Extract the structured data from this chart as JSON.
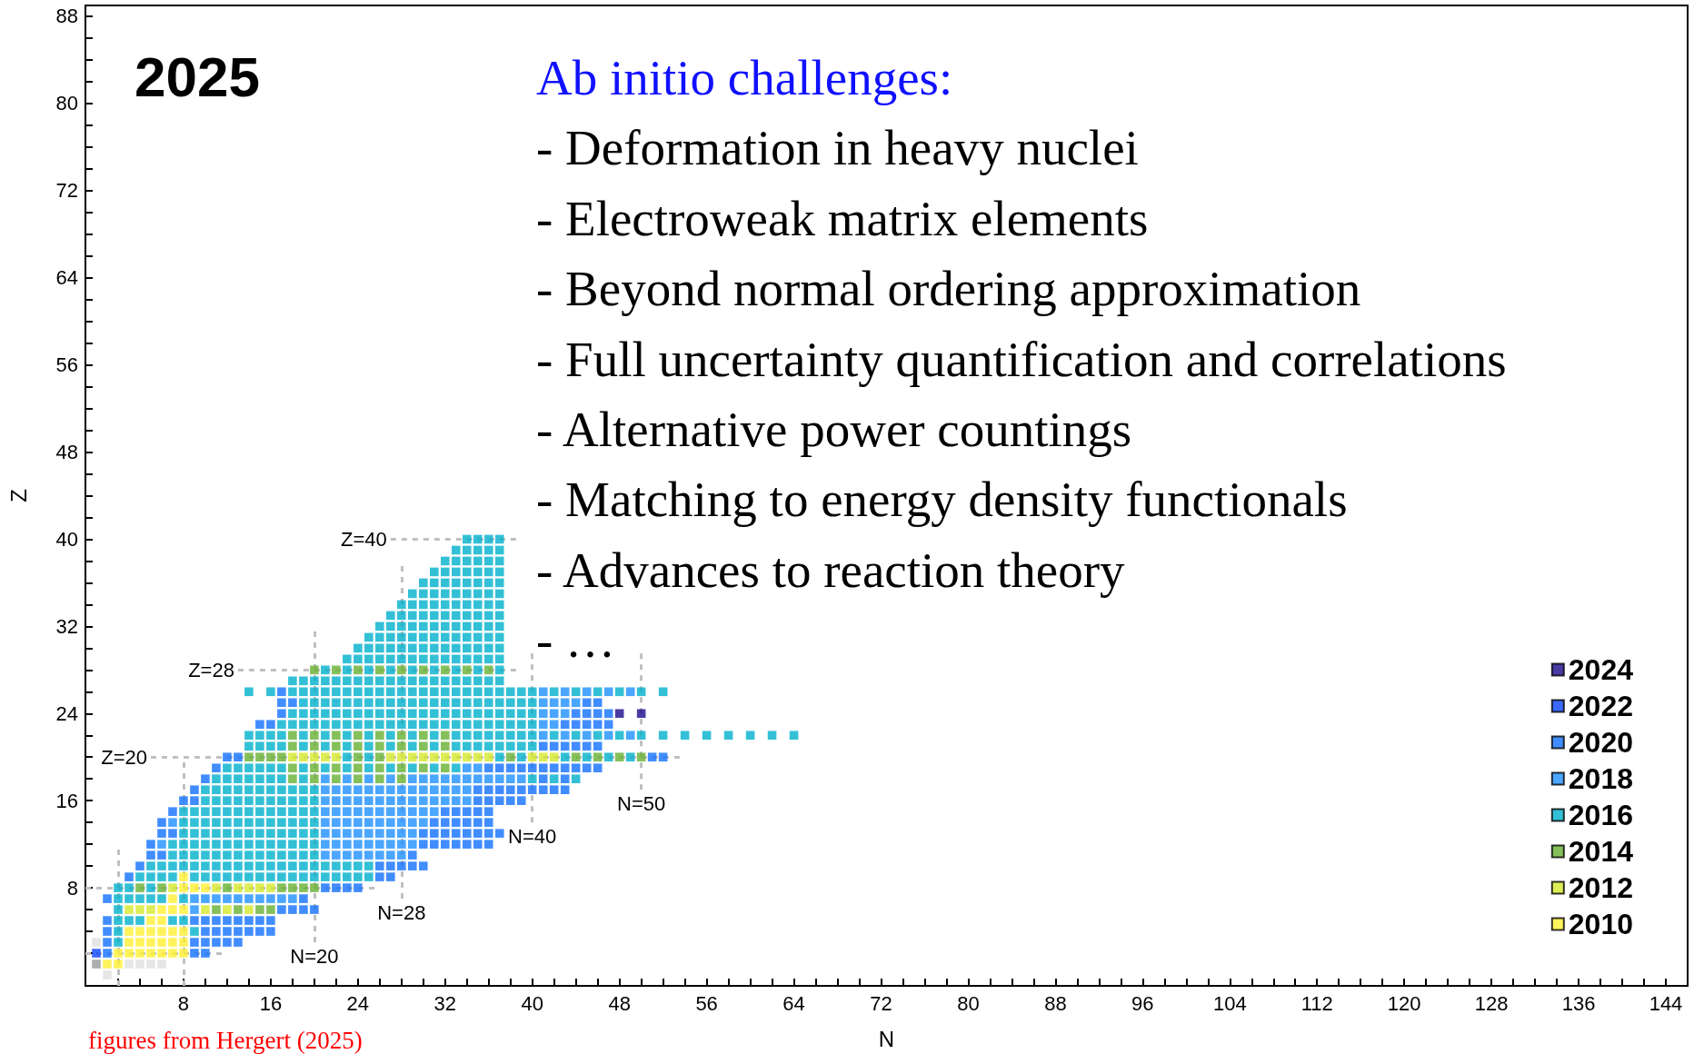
{
  "chart_data": {
    "type": "scatter",
    "title": "2025",
    "xlabel": "N",
    "ylabel": "Z",
    "xlim": [
      -1,
      146
    ],
    "ylim": [
      -1,
      89
    ],
    "xticks": [
      {
        "value": 2,
        "label": null
      },
      {
        "value": 4,
        "label": null
      },
      {
        "value": 6,
        "label": null
      },
      8,
      {
        "value": 10,
        "label": null
      },
      {
        "value": 12,
        "label": null
      },
      {
        "value": 14,
        "label": null
      },
      16,
      {
        "value": 18,
        "label": null
      },
      {
        "value": 20,
        "label": null
      },
      {
        "value": 22,
        "label": null
      },
      24,
      {
        "value": 26,
        "label": null
      },
      {
        "value": 28,
        "label": null
      },
      {
        "value": 30,
        "label": null
      },
      32,
      {
        "value": 34,
        "label": null
      },
      {
        "value": 36,
        "label": null
      },
      {
        "value": 38,
        "label": null
      },
      40,
      {
        "value": 42,
        "label": null
      },
      {
        "value": 44,
        "label": null
      },
      {
        "value": 46,
        "label": null
      },
      48,
      {
        "value": 50,
        "label": null
      },
      {
        "value": 52,
        "label": null
      },
      {
        "value": 54,
        "label": null
      },
      56,
      {
        "value": 58,
        "label": null
      },
      {
        "value": 60,
        "label": null
      },
      {
        "value": 62,
        "label": null
      },
      64,
      {
        "value": 66,
        "label": null
      },
      {
        "value": 68,
        "label": null
      },
      {
        "value": 70,
        "label": null
      },
      72,
      {
        "value": 74,
        "label": null
      },
      {
        "value": 76,
        "label": null
      },
      {
        "value": 78,
        "label": null
      },
      80,
      {
        "value": 82,
        "label": null
      },
      {
        "value": 84,
        "label": null
      },
      {
        "value": 86,
        "label": null
      },
      88,
      {
        "value": 90,
        "label": null
      },
      {
        "value": 92,
        "label": null
      },
      {
        "value": 94,
        "label": null
      },
      96,
      {
        "value": 98,
        "label": null
      },
      {
        "value": 100,
        "label": null
      },
      {
        "value": 102,
        "label": null
      },
      104,
      {
        "value": 106,
        "label": null
      },
      {
        "value": 108,
        "label": null
      },
      {
        "value": 110,
        "label": null
      },
      112,
      {
        "value": 114,
        "label": null
      },
      {
        "value": 116,
        "label": null
      },
      {
        "value": 118,
        "label": null
      },
      120,
      {
        "value": 122,
        "label": null
      },
      {
        "value": 124,
        "label": null
      },
      {
        "value": 126,
        "label": null
      },
      128,
      {
        "value": 130,
        "label": null
      },
      {
        "value": 132,
        "label": null
      },
      {
        "value": 134,
        "label": null
      },
      136,
      {
        "value": 138,
        "label": null
      },
      {
        "value": 140,
        "label": null
      },
      {
        "value": 142,
        "label": null
      },
      144,
      {
        "value": 146,
        "label": null
      }
    ],
    "yticks": [
      {
        "value": 2,
        "label": null
      },
      {
        "value": 4,
        "label": null
      },
      {
        "value": 6,
        "label": null
      },
      8,
      {
        "value": 10,
        "label": null
      },
      {
        "value": 12,
        "label": null
      },
      {
        "value": 14,
        "label": null
      },
      16,
      {
        "value": 18,
        "label": null
      },
      {
        "value": 20,
        "label": null
      },
      {
        "value": 22,
        "label": null
      },
      24,
      {
        "value": 26,
        "label": null
      },
      {
        "value": 28,
        "label": null
      },
      {
        "value": 30,
        "label": null
      },
      32,
      {
        "value": 34,
        "label": null
      },
      {
        "value": 36,
        "label": null
      },
      {
        "value": 38,
        "label": null
      },
      40,
      {
        "value": 42,
        "label": null
      },
      {
        "value": 44,
        "label": null
      },
      {
        "value": 46,
        "label": null
      },
      48,
      {
        "value": 50,
        "label": null
      },
      {
        "value": 52,
        "label": null
      },
      {
        "value": 54,
        "label": null
      },
      56,
      {
        "value": 58,
        "label": null
      },
      {
        "value": 60,
        "label": null
      },
      {
        "value": 62,
        "label": null
      },
      64,
      {
        "value": 66,
        "label": null
      },
      {
        "value": 68,
        "label": null
      },
      {
        "value": 70,
        "label": null
      },
      72,
      {
        "value": 74,
        "label": null
      },
      {
        "value": 76,
        "label": null
      },
      {
        "value": 78,
        "label": null
      },
      80,
      {
        "value": 82,
        "label": null
      },
      {
        "value": 84,
        "label": null
      },
      {
        "value": 86,
        "label": null
      },
      88
    ],
    "grid": false,
    "legend": "bottom right",
    "marker": "square",
    "series": [
      {
        "name": "2024",
        "color": "#1a0a8c",
        "x": [
          48,
          50
        ],
        "values": [
          24,
          24
        ]
      },
      {
        "name": "2022",
        "color": "#0a44ff",
        "x": [
          0
        ],
        "values": [
          2
        ]
      },
      {
        "name": "2020",
        "color": "#1170ff",
        "x": [
          1,
          9,
          10,
          1,
          9,
          10,
          11,
          12,
          13,
          1,
          10,
          11,
          12,
          13,
          14,
          15,
          16,
          1,
          9,
          10,
          11,
          12,
          13,
          14,
          15,
          16,
          17,
          18,
          19,
          20,
          1,
          19,
          21,
          22,
          23,
          24,
          3,
          26,
          27,
          4,
          26,
          27,
          28,
          29,
          30,
          5,
          6,
          29,
          5,
          30,
          31,
          32,
          33,
          34,
          35,
          36,
          6,
          7,
          30,
          31,
          32,
          33,
          34,
          35,
          36,
          37,
          6,
          31,
          32,
          33,
          34,
          35,
          36,
          7,
          32,
          33,
          34,
          35,
          36,
          8,
          9,
          35,
          36,
          37,
          38,
          39,
          9,
          35,
          36,
          37,
          38,
          39,
          40,
          41,
          42,
          43,
          10,
          41,
          43,
          11,
          36,
          37,
          38,
          39,
          40,
          41,
          42,
          43,
          44,
          45,
          46,
          12,
          13,
          51,
          52,
          41,
          42,
          43,
          44,
          45,
          46,
          15,
          16,
          43,
          44,
          45,
          46,
          47,
          17,
          44,
          45,
          46,
          47,
          17,
          18,
          45,
          46,
          17
        ],
        "values": [
          2,
          2,
          2,
          3,
          3,
          3,
          3,
          3,
          3,
          4,
          4,
          4,
          4,
          4,
          4,
          4,
          4,
          5,
          5,
          5,
          5,
          5,
          5,
          5,
          5,
          5,
          6,
          6,
          6,
          6,
          7,
          7,
          8,
          8,
          8,
          8,
          9,
          9,
          9,
          10,
          10,
          10,
          10,
          10,
          10,
          11,
          11,
          11,
          12,
          12,
          12,
          12,
          12,
          12,
          12,
          12,
          13,
          13,
          13,
          13,
          13,
          13,
          13,
          13,
          13,
          13,
          14,
          14,
          14,
          14,
          14,
          14,
          14,
          15,
          15,
          15,
          15,
          15,
          15,
          16,
          16,
          16,
          16,
          16,
          16,
          16,
          17,
          17,
          17,
          17,
          17,
          17,
          17,
          17,
          17,
          17,
          18,
          18,
          18,
          19,
          19,
          19,
          19,
          19,
          19,
          19,
          19,
          19,
          19,
          19,
          19,
          20,
          20,
          20,
          20,
          21,
          21,
          21,
          21,
          21,
          21,
          23,
          23,
          23,
          23,
          23,
          23,
          23,
          24,
          24,
          24,
          24,
          24,
          25,
          25,
          25,
          25,
          26
        ]
      },
      {
        "name": "2018",
        "color": "#1e90ff",
        "x": [
          9,
          9,
          10,
          11,
          12,
          13,
          14,
          15,
          16,
          17,
          18,
          21,
          22,
          23,
          24,
          25,
          26,
          27,
          28,
          6,
          21,
          22,
          23,
          24,
          25,
          26,
          27,
          28,
          29,
          21,
          22,
          23,
          24,
          25,
          26,
          27,
          28,
          29,
          7,
          21,
          22,
          23,
          24,
          25,
          26,
          27,
          28,
          29,
          30,
          21,
          22,
          23,
          24,
          25,
          26,
          27,
          28,
          29,
          30,
          31,
          21,
          22,
          23,
          24,
          25,
          26,
          27,
          28,
          29,
          30,
          31,
          32,
          33,
          34,
          21,
          22,
          23,
          24,
          25,
          26,
          27,
          28,
          29,
          30,
          31,
          32,
          33,
          34,
          21,
          23,
          25,
          27,
          29,
          30,
          31,
          32,
          33,
          34,
          35,
          36,
          37,
          38,
          39,
          34,
          35,
          41,
          43,
          45,
          47,
          49,
          41,
          42,
          41,
          42,
          43,
          41,
          42,
          43,
          44,
          41,
          43,
          45,
          47,
          49
        ],
        "values": [
          6,
          7,
          7,
          7,
          7,
          7,
          7,
          7,
          7,
          7,
          7,
          11,
          11,
          11,
          11,
          11,
          11,
          11,
          11,
          12,
          12,
          12,
          12,
          12,
          12,
          12,
          12,
          12,
          12,
          13,
          13,
          13,
          13,
          13,
          13,
          13,
          13,
          13,
          14,
          14,
          14,
          14,
          14,
          14,
          14,
          14,
          14,
          14,
          14,
          15,
          15,
          15,
          15,
          15,
          15,
          15,
          15,
          15,
          15,
          15,
          16,
          16,
          16,
          16,
          16,
          16,
          16,
          16,
          16,
          16,
          16,
          16,
          16,
          16,
          17,
          17,
          17,
          17,
          17,
          17,
          17,
          17,
          17,
          17,
          17,
          17,
          17,
          17,
          18,
          18,
          18,
          18,
          18,
          18,
          18,
          18,
          18,
          18,
          18,
          18,
          18,
          18,
          18,
          19,
          19,
          22,
          22,
          22,
          22,
          22,
          23,
          23,
          24,
          24,
          24,
          25,
          25,
          25,
          25,
          26,
          26,
          26,
          26,
          26
        ]
      },
      {
        "name": "2016",
        "color": "#00b0cc",
        "x": [
          2,
          2,
          9,
          2,
          3,
          4,
          7,
          8,
          2,
          2,
          3,
          4,
          5,
          6,
          8,
          2,
          3,
          5,
          4,
          5,
          6,
          7,
          9,
          10,
          11,
          12,
          13,
          14,
          15,
          16,
          17,
          18,
          19,
          20,
          21,
          22,
          23,
          24,
          25,
          5,
          6,
          7,
          8,
          9,
          10,
          11,
          12,
          13,
          14,
          15,
          16,
          17,
          18,
          19,
          20,
          21,
          22,
          23,
          24,
          25,
          7,
          8,
          9,
          10,
          11,
          12,
          13,
          14,
          15,
          16,
          17,
          18,
          19,
          20,
          7,
          8,
          9,
          10,
          11,
          12,
          13,
          14,
          15,
          16,
          17,
          18,
          19,
          20,
          8,
          9,
          10,
          11,
          12,
          13,
          14,
          15,
          16,
          17,
          18,
          19,
          20,
          8,
          9,
          10,
          11,
          12,
          13,
          14,
          15,
          16,
          17,
          18,
          19,
          20,
          8,
          9,
          10,
          11,
          12,
          13,
          14,
          15,
          16,
          17,
          18,
          19,
          20,
          10,
          11,
          12,
          13,
          14,
          15,
          16,
          17,
          18,
          19,
          20,
          10,
          11,
          12,
          13,
          14,
          15,
          16,
          17,
          18,
          19,
          20,
          11,
          12,
          13,
          14,
          15,
          16,
          17,
          19,
          40,
          42,
          44,
          12,
          13,
          14,
          15,
          16,
          17,
          19,
          21,
          23,
          25,
          27,
          29,
          31,
          33,
          23,
          25,
          37,
          39,
          43,
          45,
          47,
          49,
          14,
          15,
          16,
          17,
          19,
          21,
          23,
          25,
          27,
          29,
          31,
          33,
          34,
          35,
          36,
          37,
          38,
          39,
          40,
          14,
          15,
          16,
          17,
          19,
          21,
          23,
          25,
          27,
          29,
          31,
          33,
          34,
          35,
          36,
          37,
          38,
          39,
          40,
          42,
          44,
          46,
          48,
          50,
          52,
          54,
          56,
          58,
          60,
          62,
          64,
          17,
          18,
          19,
          20,
          21,
          22,
          23,
          24,
          25,
          26,
          27,
          28,
          29,
          30,
          31,
          32,
          33,
          34,
          35,
          36,
          37,
          38,
          39,
          40,
          18,
          19,
          20,
          21,
          22,
          23,
          24,
          25,
          26,
          27,
          28,
          29,
          30,
          31,
          32,
          33,
          34,
          35,
          36,
          37,
          38,
          39,
          40,
          19,
          20,
          21,
          22,
          23,
          24,
          25,
          26,
          27,
          28,
          29,
          30,
          31,
          32,
          33,
          34,
          35,
          36,
          37,
          38,
          39,
          40,
          14,
          16,
          18,
          19,
          20,
          21,
          22,
          23,
          24,
          25,
          26,
          27,
          28,
          29,
          30,
          31,
          32,
          33,
          34,
          35,
          36,
          37,
          38,
          39,
          40,
          42,
          44,
          46,
          48,
          50,
          52,
          18,
          19,
          20,
          21,
          22,
          23,
          24,
          25,
          26,
          27,
          28,
          29,
          30,
          31,
          32,
          33,
          34,
          35,
          36,
          37,
          21,
          23,
          25,
          27,
          29,
          31,
          33,
          35,
          37,
          23,
          24,
          25,
          26,
          27,
          28,
          29,
          30,
          31,
          32,
          33,
          34,
          35,
          36,
          37,
          24,
          25,
          26,
          27,
          28,
          29,
          30,
          31,
          32,
          33,
          34,
          35,
          36,
          37,
          25,
          26,
          27,
          28,
          29,
          30,
          31,
          32,
          33,
          34,
          35,
          36,
          37,
          26,
          27,
          28,
          29,
          30,
          31,
          32,
          33,
          34,
          35,
          36,
          37,
          27,
          28,
          29,
          30,
          31,
          32,
          33,
          34,
          35,
          36,
          37,
          28,
          29,
          30,
          31,
          32,
          33,
          34,
          35,
          36,
          37,
          29,
          30,
          31,
          32,
          33,
          34,
          35,
          36,
          37,
          30,
          31,
          32,
          33,
          34,
          35,
          36,
          37,
          31,
          32,
          33,
          34,
          35,
          36,
          37,
          32,
          33,
          34,
          35,
          36,
          37,
          33,
          34,
          35,
          36,
          37,
          34,
          35,
          36,
          37
        ],
        "values": [
          3,
          4,
          4,
          5,
          5,
          5,
          5,
          5,
          6,
          7,
          7,
          7,
          7,
          7,
          7,
          8,
          8,
          8,
          9,
          9,
          9,
          9,
          9,
          9,
          9,
          9,
          9,
          9,
          9,
          9,
          9,
          9,
          9,
          9,
          9,
          9,
          9,
          9,
          9,
          10,
          10,
          10,
          10,
          10,
          10,
          10,
          10,
          10,
          10,
          10,
          10,
          10,
          10,
          10,
          10,
          10,
          10,
          10,
          10,
          10,
          11,
          11,
          11,
          11,
          11,
          11,
          11,
          11,
          11,
          11,
          11,
          11,
          11,
          11,
          12,
          12,
          12,
          12,
          12,
          12,
          12,
          12,
          12,
          12,
          12,
          12,
          12,
          12,
          13,
          13,
          13,
          13,
          13,
          13,
          13,
          13,
          13,
          13,
          13,
          13,
          13,
          14,
          14,
          14,
          14,
          14,
          14,
          14,
          14,
          14,
          14,
          14,
          14,
          14,
          15,
          15,
          15,
          15,
          15,
          15,
          15,
          15,
          15,
          15,
          15,
          15,
          15,
          16,
          16,
          16,
          16,
          16,
          16,
          16,
          16,
          16,
          16,
          16,
          17,
          17,
          17,
          17,
          17,
          17,
          17,
          17,
          17,
          17,
          17,
          18,
          18,
          18,
          18,
          18,
          18,
          18,
          18,
          18,
          18,
          18,
          19,
          19,
          19,
          19,
          19,
          19,
          19,
          19,
          19,
          19,
          19,
          19,
          19,
          19,
          20,
          20,
          20,
          20,
          20,
          20,
          20,
          20,
          21,
          21,
          21,
          21,
          21,
          21,
          21,
          21,
          21,
          21,
          21,
          21,
          21,
          21,
          21,
          21,
          21,
          21,
          21,
          22,
          22,
          22,
          22,
          22,
          22,
          22,
          22,
          22,
          22,
          22,
          22,
          22,
          22,
          22,
          22,
          22,
          22,
          22,
          22,
          22,
          22,
          22,
          22,
          22,
          22,
          22,
          22,
          22,
          22,
          22,
          23,
          23,
          23,
          23,
          23,
          23,
          23,
          23,
          23,
          23,
          23,
          23,
          23,
          23,
          23,
          23,
          23,
          23,
          23,
          23,
          23,
          23,
          23,
          23,
          24,
          24,
          24,
          24,
          24,
          24,
          24,
          24,
          24,
          24,
          24,
          24,
          24,
          24,
          24,
          24,
          24,
          24,
          24,
          24,
          24,
          24,
          24,
          25,
          25,
          25,
          25,
          25,
          25,
          25,
          25,
          25,
          25,
          25,
          25,
          25,
          25,
          25,
          25,
          25,
          25,
          25,
          25,
          25,
          25,
          26,
          26,
          26,
          26,
          26,
          26,
          26,
          26,
          26,
          26,
          26,
          26,
          26,
          26,
          26,
          26,
          26,
          26,
          26,
          26,
          26,
          26,
          26,
          26,
          26,
          26,
          26,
          26,
          26,
          26,
          26,
          27,
          27,
          27,
          27,
          27,
          27,
          27,
          27,
          27,
          27,
          27,
          27,
          27,
          27,
          27,
          27,
          27,
          27,
          27,
          27,
          28,
          28,
          28,
          28,
          28,
          28,
          28,
          28,
          28,
          29,
          29,
          29,
          29,
          29,
          29,
          29,
          29,
          29,
          29,
          29,
          29,
          29,
          29,
          29,
          30,
          30,
          30,
          30,
          30,
          30,
          30,
          30,
          30,
          30,
          30,
          30,
          30,
          30,
          31,
          31,
          31,
          31,
          31,
          31,
          31,
          31,
          31,
          31,
          31,
          31,
          31,
          32,
          32,
          32,
          32,
          32,
          32,
          32,
          32,
          32,
          32,
          32,
          32,
          33,
          33,
          33,
          33,
          33,
          33,
          33,
          33,
          33,
          33,
          33,
          34,
          34,
          34,
          34,
          34,
          34,
          34,
          34,
          34,
          34,
          35,
          35,
          35,
          35,
          35,
          35,
          35,
          35,
          35,
          36,
          36,
          36,
          36,
          36,
          36,
          36,
          36,
          37,
          37,
          37,
          37,
          37,
          37,
          37,
          38,
          38,
          38,
          38,
          38,
          38,
          39,
          39,
          39,
          39,
          39,
          40,
          40,
          40,
          40
        ]
      },
      {
        "name": "2014",
        "color": "#66b032",
        "x": [
          11,
          13,
          15,
          16,
          4,
          6,
          12,
          17,
          18,
          19,
          20,
          18,
          20,
          22,
          24,
          26,
          28,
          18,
          20,
          22,
          24,
          26,
          28,
          30,
          32,
          14,
          15,
          16,
          17,
          24,
          26,
          38,
          44,
          46,
          48,
          50,
          18,
          20,
          22,
          24,
          26,
          28,
          30,
          32,
          18,
          20,
          22,
          24,
          26,
          28,
          30,
          32,
          20,
          22,
          24,
          26,
          28,
          30,
          32,
          34,
          36
        ],
        "values": [
          6,
          6,
          6,
          6,
          8,
          8,
          8,
          8,
          8,
          8,
          8,
          18,
          18,
          18,
          18,
          18,
          18,
          19,
          19,
          19,
          19,
          19,
          19,
          19,
          19,
          20,
          20,
          20,
          20,
          20,
          20,
          20,
          20,
          20,
          20,
          20,
          21,
          21,
          21,
          21,
          21,
          21,
          21,
          21,
          22,
          22,
          22,
          22,
          22,
          22,
          22,
          22,
          28,
          28,
          28,
          28,
          28,
          28,
          28,
          28,
          28
        ]
      },
      {
        "name": "2012",
        "color": "#d4e82a",
        "x": [
          3,
          4,
          5,
          10,
          12,
          14,
          7,
          11,
          13,
          14,
          15,
          16,
          18,
          19,
          20,
          21,
          22,
          27,
          28,
          29,
          30,
          31,
          32,
          33,
          34,
          35,
          36,
          40,
          41,
          42
        ],
        "values": [
          6,
          6,
          6,
          6,
          6,
          6,
          8,
          8,
          8,
          8,
          8,
          8,
          20,
          20,
          20,
          20,
          20,
          20,
          20,
          20,
          20,
          20,
          20,
          20,
          20,
          20,
          20,
          20,
          20,
          20
        ]
      },
      {
        "name": "2010",
        "color": "#fff033",
        "x": [
          1,
          2,
          2,
          3,
          4,
          5,
          6,
          7,
          8,
          3,
          4,
          5,
          6,
          7,
          8,
          3,
          4,
          5,
          6,
          7,
          8,
          5,
          6,
          6,
          7,
          8,
          7,
          8,
          9,
          10,
          8
        ],
        "values": [
          1,
          1,
          2,
          2,
          2,
          2,
          2,
          2,
          2,
          3,
          3,
          3,
          3,
          3,
          3,
          4,
          4,
          4,
          4,
          4,
          4,
          5,
          5,
          6,
          6,
          6,
          7,
          8,
          8,
          8,
          9
        ]
      },
      {
        "color": "#e0e0e0",
        "x": [
          1,
          3,
          4,
          5,
          6,
          0
        ],
        "values": [
          0,
          1,
          1,
          1,
          1,
          3
        ]
      },
      {
        "color": "#999999",
        "x": [
          0
        ],
        "values": [
          1
        ]
      }
    ],
    "ref_lines": [
      {
        "axis": "y",
        "value": 2,
        "label": null,
        "color": "#c0c0c0",
        "line_style": "dashed"
      },
      {
        "axis": "y",
        "value": 8,
        "label": null,
        "color": "#c0c0c0",
        "line_style": "dashed"
      },
      {
        "axis": "y",
        "value": 20,
        "label": "Z=20",
        "color": "#c0c0c0",
        "line_style": "dashed"
      },
      {
        "axis": "y",
        "value": 28,
        "label": "Z=28",
        "color": "#c0c0c0",
        "line_style": "dashed"
      },
      {
        "axis": "y",
        "value": 40,
        "label": "Z=40",
        "color": "#c0c0c0",
        "line_style": "dashed"
      },
      {
        "axis": "x",
        "value": 2,
        "label": null,
        "color": "#c0c0c0",
        "line_style": "dashed"
      },
      {
        "axis": "x",
        "value": 8,
        "label": null,
        "color": "#c0c0c0",
        "line_style": "dashed"
      },
      {
        "axis": "x",
        "value": 20,
        "label": "N=20",
        "color": "#c0c0c0",
        "line_style": "dashed"
      },
      {
        "axis": "x",
        "value": 28,
        "label": "N=28",
        "color": "#c0c0c0",
        "line_style": "dashed"
      },
      {
        "axis": "x",
        "value": 40,
        "label": "N=40",
        "color": "#c0c0c0",
        "line_style": "dashed"
      },
      {
        "axis": "x",
        "value": 50,
        "label": "N=50",
        "color": "#c0c0c0",
        "line_style": "dashed"
      }
    ],
    "annotations": [
      "Ab initio challenges:",
      "- Deformation in heavy nuclei",
      "- Electroweak matrix elements",
      "- Beyond normal ordering approximation",
      "- Full uncertainty quantification and correlations",
      "- Alternative power countings",
      "- Matching to energy density functionals",
      "- Advances to reaction theory",
      "- …",
      "figures from Hergert (2025)"
    ]
  }
}
